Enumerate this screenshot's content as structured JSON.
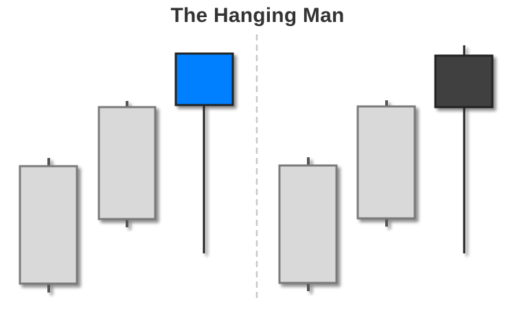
{
  "title": "The Hanging Man",
  "colors": {
    "candle_fill": "#d9d9d9",
    "candle_border": "#7a7a7a",
    "wick": "#555555",
    "hanging_man_bullish": "#0080ff",
    "hanging_man_bearish": "#3f3f3f",
    "hanging_man_border": "#222222",
    "divider": "#c8c8c8"
  },
  "panels": [
    {
      "name": "left",
      "candles": [
        {
          "role": "rising-candle-1",
          "color_key": "candle_fill"
        },
        {
          "role": "rising-candle-2",
          "color_key": "candle_fill"
        },
        {
          "role": "hanging-man",
          "color_key": "hanging_man_bullish"
        }
      ]
    },
    {
      "name": "right",
      "candles": [
        {
          "role": "rising-candle-1",
          "color_key": "candle_fill"
        },
        {
          "role": "rising-candle-2",
          "color_key": "candle_fill"
        },
        {
          "role": "hanging-man",
          "color_key": "hanging_man_bearish"
        }
      ]
    }
  ]
}
